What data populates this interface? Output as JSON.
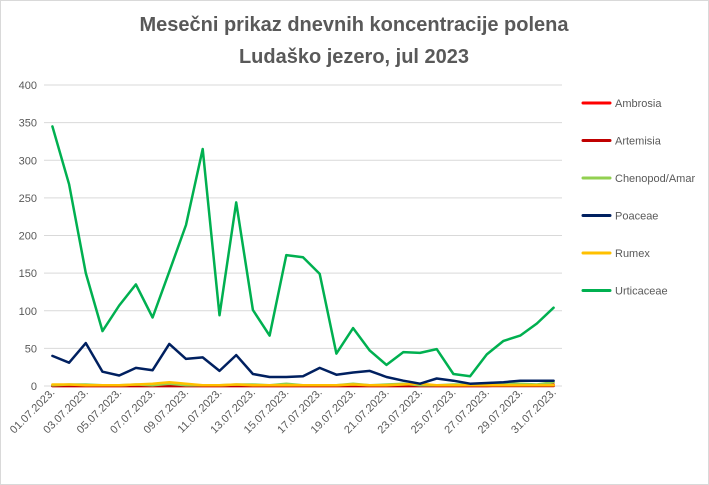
{
  "chart_data": {
    "type": "line",
    "title_lines": [
      "Mesečni prikaz dnevnih koncentracije polena",
      "Ludaško jezero, jul 2023"
    ],
    "xlabel": "",
    "ylabel": "",
    "ylim": [
      0,
      400
    ],
    "yticks": [
      0,
      50,
      100,
      150,
      200,
      250,
      300,
      350,
      400
    ],
    "grid": true,
    "legend_position": "right",
    "x": [
      "01.07.2023.",
      "02.07.2023.",
      "03.07.2023.",
      "04.07.2023.",
      "05.07.2023.",
      "06.07.2023.",
      "07.07.2023.",
      "08.07.2023.",
      "09.07.2023.",
      "10.07.2023.",
      "11.07.2023.",
      "12.07.2023.",
      "13.07.2023.",
      "14.07.2023.",
      "15.07.2023.",
      "16.07.2023.",
      "17.07.2023.",
      "18.07.2023.",
      "19.07.2023.",
      "20.07.2023.",
      "21.07.2023.",
      "22.07.2023.",
      "23.07.2023.",
      "24.07.2023.",
      "25.07.2023.",
      "26.07.2023.",
      "27.07.2023.",
      "28.07.2023.",
      "29.07.2023.",
      "30.07.2023.",
      "31.07.2023."
    ],
    "x_tick_labels": [
      "01.07.2023.",
      "03.07.2023.",
      "05.07.2023.",
      "07.07.2023.",
      "09.07.2023.",
      "11.07.2023.",
      "13.07.2023.",
      "15.07.2023.",
      "17.07.2023.",
      "19.07.2023.",
      "21.07.2023.",
      "23.07.2023.",
      "25.07.2023.",
      "27.07.2023.",
      "29.07.2023.",
      "31.07.2023."
    ],
    "series": [
      {
        "name": "Ambrosia",
        "color": "#ff0000",
        "values": [
          0,
          0,
          0,
          0,
          0,
          0,
          0,
          0,
          0,
          0,
          0,
          0,
          0,
          0,
          0,
          0,
          0,
          0,
          0,
          0,
          0,
          0,
          0,
          0,
          0,
          0,
          0,
          1,
          1,
          1,
          2
        ]
      },
      {
        "name": "Artemisia",
        "color": "#c00000",
        "values": [
          0,
          0,
          0,
          0,
          0,
          0,
          0,
          0,
          0,
          0,
          0,
          0,
          0,
          0,
          0,
          0,
          0,
          0,
          0,
          0,
          0,
          0,
          0,
          0,
          0,
          0,
          0,
          0,
          0,
          0,
          0
        ]
      },
      {
        "name": "Chenopod/Amar",
        "color": "#92d050",
        "values": [
          1,
          2,
          2,
          1,
          1,
          2,
          1,
          3,
          1,
          1,
          1,
          2,
          2,
          1,
          3,
          1,
          1,
          1,
          3,
          1,
          2,
          3,
          1,
          1,
          2,
          2,
          1,
          3,
          3,
          2,
          5
        ]
      },
      {
        "name": "Urticaceae",
        "color": "#00b050",
        "values": [
          345,
          268,
          150,
          73,
          107,
          135,
          91,
          152,
          214,
          315,
          94,
          244,
          101,
          67,
          174,
          171,
          149,
          43,
          77,
          47,
          28,
          45,
          44,
          49,
          16,
          13,
          42,
          60,
          67,
          83,
          104
        ]
      },
      {
        "name": "Rumex",
        "color": "#ffc000",
        "values": [
          2,
          2,
          1,
          1,
          1,
          2,
          3,
          5,
          3,
          1,
          1,
          2,
          1,
          1,
          1,
          1,
          1,
          1,
          2,
          1,
          1,
          2,
          3,
          1,
          1,
          1,
          1,
          1,
          1,
          1,
          1
        ]
      },
      {
        "name": "Poaceae",
        "color": "#002060",
        "values": [
          40,
          31,
          57,
          19,
          14,
          24,
          21,
          56,
          36,
          38,
          20,
          41,
          16,
          12,
          12,
          13,
          24,
          15,
          18,
          20,
          12,
          7,
          3,
          10,
          7,
          3,
          4,
          5,
          7,
          7,
          7
        ]
      }
    ],
    "legend_order": [
      "Ambrosia",
      "Artemisia",
      "Chenopod/Amar",
      "Poaceae",
      "Rumex",
      "Urticaceae"
    ]
  }
}
